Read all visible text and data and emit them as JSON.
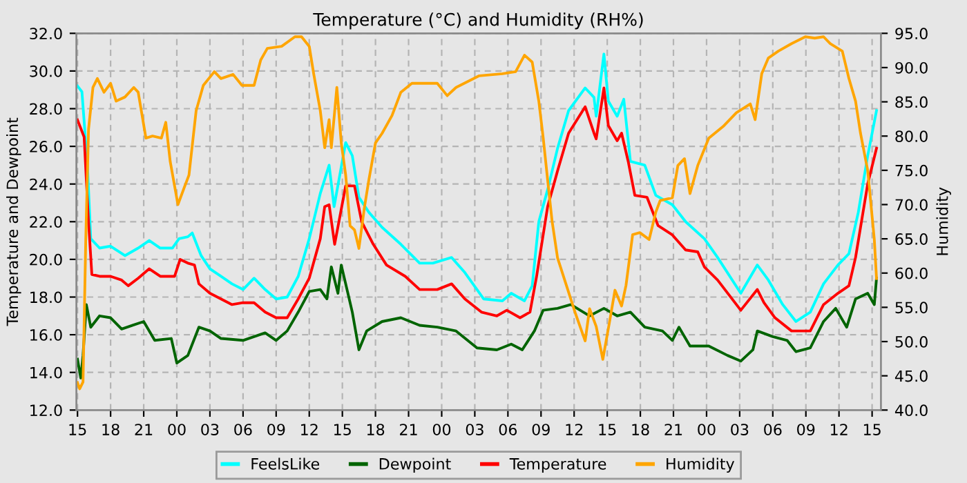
{
  "chart_data": {
    "type": "line",
    "title": "Temperature (°C) and Humidity (RH%)",
    "ylabel": "Temperature and Dewpoint",
    "y2label": "Humidity",
    "xlim": [
      14.9,
      87.8
    ],
    "xticks": [
      {
        "value": 15,
        "label": "15"
      },
      {
        "value": 18,
        "label": "18"
      },
      {
        "value": 21,
        "label": "21"
      },
      {
        "value": 24,
        "label": "00"
      },
      {
        "value": 27,
        "label": "03"
      },
      {
        "value": 30,
        "label": "06"
      },
      {
        "value": 33,
        "label": "09"
      },
      {
        "value": 36,
        "label": "12"
      },
      {
        "value": 39,
        "label": "15"
      },
      {
        "value": 42,
        "label": "18"
      },
      {
        "value": 45,
        "label": "21"
      },
      {
        "value": 48,
        "label": "00"
      },
      {
        "value": 51,
        "label": "03"
      },
      {
        "value": 54,
        "label": "06"
      },
      {
        "value": 57,
        "label": "09"
      },
      {
        "value": 60,
        "label": "12"
      },
      {
        "value": 63,
        "label": "15"
      },
      {
        "value": 66,
        "label": "18"
      },
      {
        "value": 69,
        "label": "21"
      },
      {
        "value": 72,
        "label": "00"
      },
      {
        "value": 75,
        "label": "03"
      },
      {
        "value": 78,
        "label": "06"
      },
      {
        "value": 81,
        "label": "09"
      },
      {
        "value": 84,
        "label": "12"
      },
      {
        "value": 87,
        "label": "15"
      }
    ],
    "ylim": [
      12,
      32
    ],
    "yticks": [
      {
        "value": 12,
        "label": "12.0"
      },
      {
        "value": 14,
        "label": "14.0"
      },
      {
        "value": 16,
        "label": "16.0"
      },
      {
        "value": 18,
        "label": "18.0"
      },
      {
        "value": 20,
        "label": "20.0"
      },
      {
        "value": 22,
        "label": "22.0"
      },
      {
        "value": 24,
        "label": "24.0"
      },
      {
        "value": 26,
        "label": "26.0"
      },
      {
        "value": 28,
        "label": "28.0"
      },
      {
        "value": 30,
        "label": "30.0"
      },
      {
        "value": 32,
        "label": "32.0"
      }
    ],
    "y2lim": [
      40,
      95
    ],
    "y2ticks": [
      {
        "value": 40,
        "label": "40.0"
      },
      {
        "value": 45,
        "label": "45.0"
      },
      {
        "value": 50,
        "label": "50.0"
      },
      {
        "value": 55,
        "label": "55.0"
      },
      {
        "value": 60,
        "label": "60.0"
      },
      {
        "value": 65,
        "label": "65.0"
      },
      {
        "value": 70,
        "label": "70.0"
      },
      {
        "value": 75,
        "label": "75.0"
      },
      {
        "value": 80,
        "label": "80.0"
      },
      {
        "value": 85,
        "label": "85.0"
      },
      {
        "value": 90,
        "label": "90.0"
      },
      {
        "value": 95,
        "label": "95.0"
      }
    ],
    "grid": true,
    "legend": "bottom",
    "marker": "none",
    "line_style": "solid",
    "series": [
      {
        "name": "FeelsLike",
        "color": "#00ffff",
        "x": [
          15,
          15.4,
          15.9,
          16.2,
          17,
          18,
          19.3,
          20.5,
          21.5,
          22.5,
          23.6,
          24.2,
          25,
          25.4,
          26.2,
          27,
          28,
          29,
          30,
          31,
          32,
          33,
          34,
          35,
          36,
          37,
          37.8,
          38.25,
          39.3,
          39.9,
          40.5,
          41.4,
          42.6,
          44.3,
          46,
          47.2,
          48.9,
          50.1,
          51.8,
          53.5,
          54.3,
          55.5,
          56.2,
          56.8,
          57.6,
          58.5,
          59.5,
          61,
          61.8,
          62,
          62.7,
          63.1,
          63.9,
          64.5,
          65.1,
          66.4,
          67.4,
          68.9,
          70.1,
          71.8,
          73,
          75.1,
          76.6,
          77.6,
          78.9,
          80.1,
          81.4,
          82.6,
          83.9,
          84.9,
          85.75,
          86.6,
          87.4
        ],
        "values": [
          29.2,
          28.9,
          25.0,
          21.1,
          20.6,
          20.7,
          20.2,
          20.6,
          21.0,
          20.6,
          20.6,
          21.1,
          21.2,
          21.4,
          20.2,
          19.5,
          19.1,
          18.7,
          18.4,
          19.0,
          18.4,
          17.9,
          18.0,
          19.1,
          21.1,
          23.5,
          25.0,
          22.8,
          26.2,
          25.5,
          23.3,
          22.5,
          21.7,
          20.8,
          19.8,
          19.8,
          20.1,
          19.3,
          17.9,
          17.8,
          18.2,
          17.8,
          18.6,
          22.0,
          23.7,
          25.9,
          27.9,
          29.1,
          28.6,
          27.6,
          30.9,
          28.4,
          27.6,
          28.5,
          25.2,
          25.0,
          23.4,
          22.9,
          22.0,
          21.1,
          20.1,
          18.2,
          19.7,
          18.9,
          17.6,
          16.7,
          17.2,
          18.7,
          19.7,
          20.3,
          22.5,
          25.5,
          27.9
        ]
      },
      {
        "name": "Dewpoint",
        "color": "#006400",
        "x": [
          15,
          15.3,
          15.5,
          15.8,
          16.2,
          17,
          18,
          19,
          20,
          21,
          22,
          23.5,
          24,
          25,
          26,
          27,
          28,
          30,
          32,
          33,
          34,
          35,
          36,
          37,
          37.6,
          38,
          38.6,
          38.9,
          39.9,
          40.5,
          41.2,
          42.6,
          44.3,
          46,
          47.6,
          49.3,
          51.2,
          53,
          54.3,
          55.3,
          56.4,
          57.2,
          58.5,
          59.7,
          61.4,
          62.7,
          63.9,
          65.1,
          66.4,
          68,
          68.9,
          69.5,
          70.5,
          72.2,
          73.9,
          75.1,
          76.2,
          76.6,
          78,
          79.3,
          80.1,
          81.4,
          82.6,
          83.7,
          84.7,
          85.5,
          86.6,
          87.2,
          87.4
        ],
        "values": [
          14.7,
          13.7,
          14.9,
          17.6,
          16.4,
          17.0,
          16.9,
          16.3,
          16.5,
          16.7,
          15.7,
          15.8,
          14.5,
          14.9,
          16.4,
          16.2,
          15.8,
          15.7,
          16.1,
          15.7,
          16.2,
          17.2,
          18.3,
          18.4,
          17.9,
          19.6,
          18.2,
          19.7,
          17.2,
          15.2,
          16.2,
          16.7,
          16.9,
          16.5,
          16.4,
          16.2,
          15.3,
          15.2,
          15.5,
          15.2,
          16.2,
          17.3,
          17.4,
          17.6,
          17.0,
          17.4,
          17.0,
          17.2,
          16.4,
          16.2,
          15.7,
          16.4,
          15.4,
          15.4,
          14.9,
          14.6,
          15.2,
          16.2,
          15.9,
          15.7,
          15.1,
          15.3,
          16.7,
          17.4,
          16.4,
          17.9,
          18.2,
          17.6,
          19.0
        ]
      },
      {
        "name": "Temperature",
        "color": "#ff0000",
        "x": [
          15,
          15.6,
          16.0,
          16.3,
          17,
          18,
          19,
          19.6,
          20.5,
          21.5,
          22.5,
          23.8,
          24.3,
          25,
          25.6,
          26,
          27,
          28,
          29,
          30,
          31,
          32,
          33,
          34,
          35,
          36,
          37,
          37.4,
          37.8,
          38.3,
          39.3,
          40.1,
          40.75,
          41.8,
          43,
          44.7,
          46,
          47.6,
          48.9,
          50.1,
          51.6,
          53,
          53.9,
          55.1,
          56,
          56.6,
          57.6,
          58.5,
          59.5,
          61,
          61.8,
          62,
          62.7,
          63.1,
          63.9,
          64.3,
          64.9,
          65.5,
          66.6,
          67.6,
          68.9,
          70.1,
          71.2,
          71.8,
          73,
          75.1,
          76.6,
          77.2,
          78.2,
          79.7,
          81.4,
          82.6,
          83.9,
          84.9,
          85.5,
          86.6,
          87.4
        ],
        "values": [
          27.4,
          26.5,
          22.0,
          19.2,
          19.1,
          19.1,
          18.9,
          18.6,
          19.0,
          19.5,
          19.1,
          19.1,
          20.0,
          19.8,
          19.7,
          18.7,
          18.2,
          17.9,
          17.6,
          17.7,
          17.7,
          17.2,
          16.9,
          16.9,
          17.9,
          19.0,
          21.1,
          22.8,
          22.9,
          20.8,
          23.9,
          23.9,
          22.0,
          20.8,
          19.7,
          19.1,
          18.4,
          18.4,
          18.7,
          17.9,
          17.2,
          17.0,
          17.3,
          16.9,
          17.2,
          19.1,
          22.8,
          24.7,
          26.7,
          28.1,
          26.7,
          26.4,
          29.1,
          27.1,
          26.3,
          26.7,
          25.2,
          23.4,
          23.3,
          21.8,
          21.3,
          20.5,
          20.4,
          19.6,
          18.9,
          17.3,
          18.4,
          17.7,
          16.9,
          16.2,
          16.2,
          17.6,
          18.2,
          18.6,
          20.1,
          24.0,
          25.9
        ]
      },
      {
        "name": "Humidity",
        "color": "#ffa500",
        "axis": "y2",
        "x": [
          15,
          15.2,
          15.5,
          15.75,
          16.0,
          16.4,
          16.8,
          17.4,
          18.0,
          18.5,
          19.3,
          20.1,
          20.5,
          21.2,
          21.8,
          22.6,
          23.0,
          23.4,
          24.1,
          24.7,
          25.1,
          25.75,
          26.4,
          27.4,
          28.0,
          29.1,
          29.9,
          31.0,
          31.6,
          32.2,
          33.5,
          34.7,
          35.3,
          36.0,
          36.4,
          37.0,
          37.4,
          37.8,
          38.0,
          38.5,
          38.9,
          39.3,
          39.7,
          40.1,
          40.5,
          41.0,
          41.4,
          42.0,
          42.6,
          43.5,
          44.3,
          45.3,
          47.6,
          48.5,
          49.3,
          51.4,
          53.5,
          54.7,
          55.5,
          56.2,
          56.8,
          57.2,
          57.6,
          58.0,
          58.5,
          59.3,
          60.1,
          61.0,
          61.4,
          62.0,
          62.6,
          63.2,
          63.7,
          64.3,
          64.7,
          65.3,
          65.95,
          66.8,
          67.4,
          67.8,
          68.9,
          69.4,
          70.0,
          70.5,
          71.2,
          72.2,
          73.5,
          74.7,
          75.96,
          76.4,
          77.0,
          77.6,
          78.5,
          79.7,
          80.95,
          81.8,
          82.6,
          83.2,
          84.3,
          84.9,
          85.5,
          85.95,
          86.6,
          87.2,
          87.4
        ],
        "values": [
          44.0,
          43.1,
          44.1,
          64.9,
          81.0,
          87.1,
          88.4,
          86.4,
          87.7,
          85.1,
          85.7,
          87.1,
          86.4,
          79.7,
          80.0,
          79.7,
          82.0,
          76.3,
          70.0,
          72.6,
          74.3,
          83.7,
          87.4,
          89.4,
          88.4,
          89.0,
          87.4,
          87.4,
          91.1,
          92.8,
          93.1,
          94.5,
          94.5,
          93.1,
          89.1,
          83.7,
          78.3,
          82.4,
          78.3,
          87.1,
          79.0,
          74.3,
          66.9,
          66.3,
          63.6,
          69.6,
          73.6,
          79.0,
          80.4,
          83.0,
          86.4,
          87.7,
          87.7,
          85.9,
          87.1,
          88.8,
          89.1,
          89.4,
          91.8,
          90.8,
          85.1,
          79.7,
          73.6,
          67.6,
          62.2,
          58.2,
          54.2,
          50.1,
          54.8,
          52.2,
          47.4,
          52.8,
          57.5,
          55.2,
          58.2,
          65.6,
          65.9,
          64.9,
          68.9,
          70.6,
          71.0,
          75.7,
          76.7,
          71.6,
          75.7,
          79.7,
          81.4,
          83.4,
          84.7,
          82.4,
          89.1,
          91.4,
          92.4,
          93.5,
          94.5,
          94.3,
          94.5,
          93.5,
          92.4,
          88.4,
          85.1,
          80.4,
          75.0,
          64.9,
          59.2
        ]
      }
    ]
  }
}
